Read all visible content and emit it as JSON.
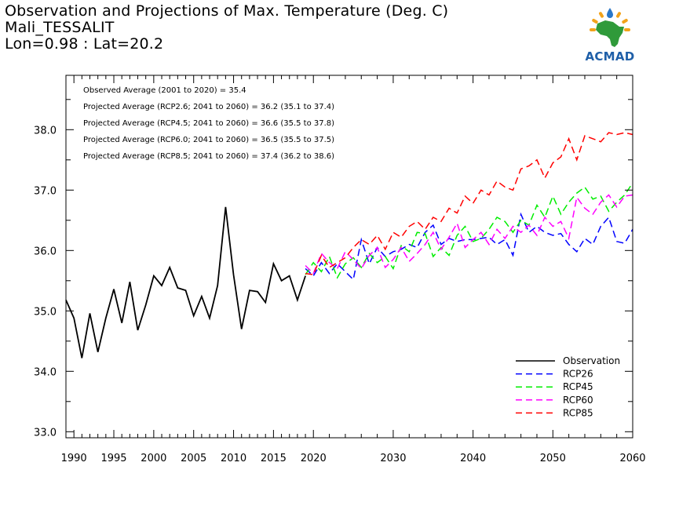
{
  "header": {
    "title": "Observation and Projections of Max. Temperature (Deg. C)",
    "location": "Mali_TESSALIT",
    "coords": "Lon=0.98 : Lat=20.2"
  },
  "logo": {
    "text": "ACMAD"
  },
  "chart_data": {
    "type": "line",
    "xlim": [
      1989,
      2060
    ],
    "ylim": [
      32.9,
      38.9
    ],
    "grid": false,
    "legend_position": "bottom-right",
    "x_ticks": [
      1990,
      1995,
      2000,
      2005,
      2010,
      2015,
      2020,
      2030,
      2040,
      2050,
      2060
    ],
    "x_tick_labels": [
      "1990",
      "1995",
      "2000",
      "2005",
      "2010",
      "2015",
      "2020",
      "2030",
      "2040",
      "2050",
      "2060"
    ],
    "y_ticks": [
      33.0,
      34.0,
      35.0,
      36.0,
      37.0,
      38.0
    ],
    "y_tick_labels": [
      "33.0",
      "34.0",
      "35.0",
      "36.0",
      "37.0",
      "38.0"
    ],
    "annotations": [
      "Observed Average (2001 to 2020) = 35.4",
      "Projected Average (RCP2.6; 2041 to 2060) = 36.2 (35.1 to 37.4)",
      "Projected Average (RCP4.5; 2041 to 2060) = 36.6 (35.5 to 37.8)",
      "Projected Average (RCP6.0; 2041 to 2060) = 36.5 (35.5 to 37.5)",
      "Projected Average (RCP8.5; 2041 to 2060) = 37.4 (36.2 to 38.6)"
    ],
    "series": [
      {
        "name": "Observation",
        "color": "#000000",
        "dashed": false,
        "x": [
          1989,
          1990,
          1991,
          1992,
          1993,
          1994,
          1995,
          1996,
          1997,
          1998,
          1999,
          2000,
          2001,
          2002,
          2003,
          2004,
          2005,
          2006,
          2007,
          2008,
          2009,
          2010,
          2011,
          2012,
          2013,
          2014,
          2015,
          2016,
          2017,
          2018,
          2019
        ],
        "y": [
          35.18,
          34.88,
          34.22,
          34.96,
          34.32,
          34.88,
          35.36,
          34.8,
          35.48,
          34.68,
          35.1,
          35.58,
          35.42,
          35.72,
          35.38,
          35.34,
          34.92,
          35.24,
          34.88,
          35.42,
          36.72,
          35.6,
          34.7,
          35.34,
          35.32,
          35.14,
          35.78,
          35.5,
          35.58,
          35.18,
          35.58
        ]
      },
      {
        "name": "RCP26",
        "color": "#0000ff",
        "dashed": true,
        "x": [
          2019,
          2020,
          2021,
          2022,
          2023,
          2024,
          2025,
          2026,
          2027,
          2028,
          2029,
          2030,
          2031,
          2032,
          2033,
          2034,
          2035,
          2036,
          2037,
          2038,
          2039,
          2040,
          2041,
          2042,
          2043,
          2044,
          2045,
          2046,
          2047,
          2048,
          2049,
          2050,
          2051,
          2052,
          2053,
          2054,
          2055,
          2056,
          2057,
          2058,
          2059,
          2060
        ],
        "y": [
          35.7,
          35.58,
          35.8,
          35.62,
          35.78,
          35.65,
          35.52,
          36.18,
          35.78,
          36.05,
          35.9,
          35.98,
          36.02,
          36.1,
          36.05,
          36.3,
          36.42,
          36.1,
          36.2,
          36.15,
          36.18,
          36.18,
          36.2,
          36.22,
          36.1,
          36.18,
          35.92,
          36.6,
          36.3,
          36.4,
          36.3,
          36.25,
          36.28,
          36.1,
          35.98,
          36.2,
          36.1,
          36.4,
          36.55,
          36.15,
          36.12,
          36.35
        ]
      },
      {
        "name": "RCP45",
        "color": "#00ee00",
        "dashed": true,
        "x": [
          2019,
          2020,
          2021,
          2022,
          2023,
          2024,
          2025,
          2026,
          2027,
          2028,
          2029,
          2030,
          2031,
          2032,
          2033,
          2034,
          2035,
          2036,
          2037,
          2038,
          2039,
          2040,
          2041,
          2042,
          2043,
          2044,
          2045,
          2046,
          2047,
          2048,
          2049,
          2050,
          2051,
          2052,
          2053,
          2054,
          2055,
          2056,
          2057,
          2058,
          2059,
          2060
        ],
        "y": [
          35.6,
          35.8,
          35.65,
          35.9,
          35.55,
          35.78,
          35.88,
          35.72,
          35.95,
          35.8,
          35.9,
          35.7,
          36.08,
          35.98,
          36.3,
          36.28,
          35.9,
          36.05,
          35.92,
          36.25,
          36.4,
          36.15,
          36.2,
          36.35,
          36.55,
          36.48,
          36.3,
          36.5,
          36.42,
          36.75,
          36.55,
          36.9,
          36.6,
          36.8,
          36.95,
          37.05,
          36.85,
          36.9,
          36.65,
          36.8,
          36.92,
          37.12
        ]
      },
      {
        "name": "RCP60",
        "color": "#ff00ff",
        "dashed": true,
        "x": [
          2019,
          2020,
          2021,
          2022,
          2023,
          2024,
          2025,
          2026,
          2027,
          2028,
          2029,
          2030,
          2031,
          2032,
          2033,
          2034,
          2035,
          2036,
          2037,
          2038,
          2039,
          2040,
          2041,
          2042,
          2043,
          2044,
          2045,
          2046,
          2047,
          2048,
          2049,
          2050,
          2051,
          2052,
          2053,
          2054,
          2055,
          2056,
          2057,
          2058,
          2059,
          2060
        ],
        "y": [
          35.75,
          35.62,
          35.95,
          35.8,
          35.7,
          35.98,
          35.85,
          35.7,
          35.92,
          36.05,
          35.72,
          35.85,
          36.05,
          35.82,
          35.95,
          36.1,
          36.3,
          36.02,
          36.22,
          36.45,
          36.05,
          36.18,
          36.3,
          36.1,
          36.35,
          36.2,
          36.4,
          36.3,
          36.42,
          36.25,
          36.55,
          36.4,
          36.48,
          36.2,
          36.88,
          36.7,
          36.6,
          36.8,
          36.92,
          36.72,
          36.9,
          36.92
        ]
      },
      {
        "name": "RCP85",
        "color": "#ff0000",
        "dashed": true,
        "x": [
          2019,
          2020,
          2021,
          2022,
          2023,
          2024,
          2025,
          2026,
          2027,
          2028,
          2029,
          2030,
          2031,
          2032,
          2033,
          2034,
          2035,
          2036,
          2037,
          2038,
          2039,
          2040,
          2041,
          2042,
          2043,
          2044,
          2045,
          2046,
          2047,
          2048,
          2049,
          2050,
          2051,
          2052,
          2053,
          2054,
          2055,
          2056,
          2057,
          2058,
          2059,
          2060
        ],
        "y": [
          35.62,
          35.6,
          35.92,
          35.72,
          35.8,
          35.88,
          36.05,
          36.18,
          36.1,
          36.25,
          36.02,
          36.3,
          36.22,
          36.4,
          36.48,
          36.35,
          36.55,
          36.48,
          36.7,
          36.62,
          36.9,
          36.78,
          37.0,
          36.92,
          37.15,
          37.05,
          37.0,
          37.35,
          37.4,
          37.5,
          37.2,
          37.45,
          37.55,
          37.85,
          37.5,
          37.9,
          37.85,
          37.8,
          37.95,
          37.92,
          37.95,
          37.92
        ]
      }
    ]
  }
}
